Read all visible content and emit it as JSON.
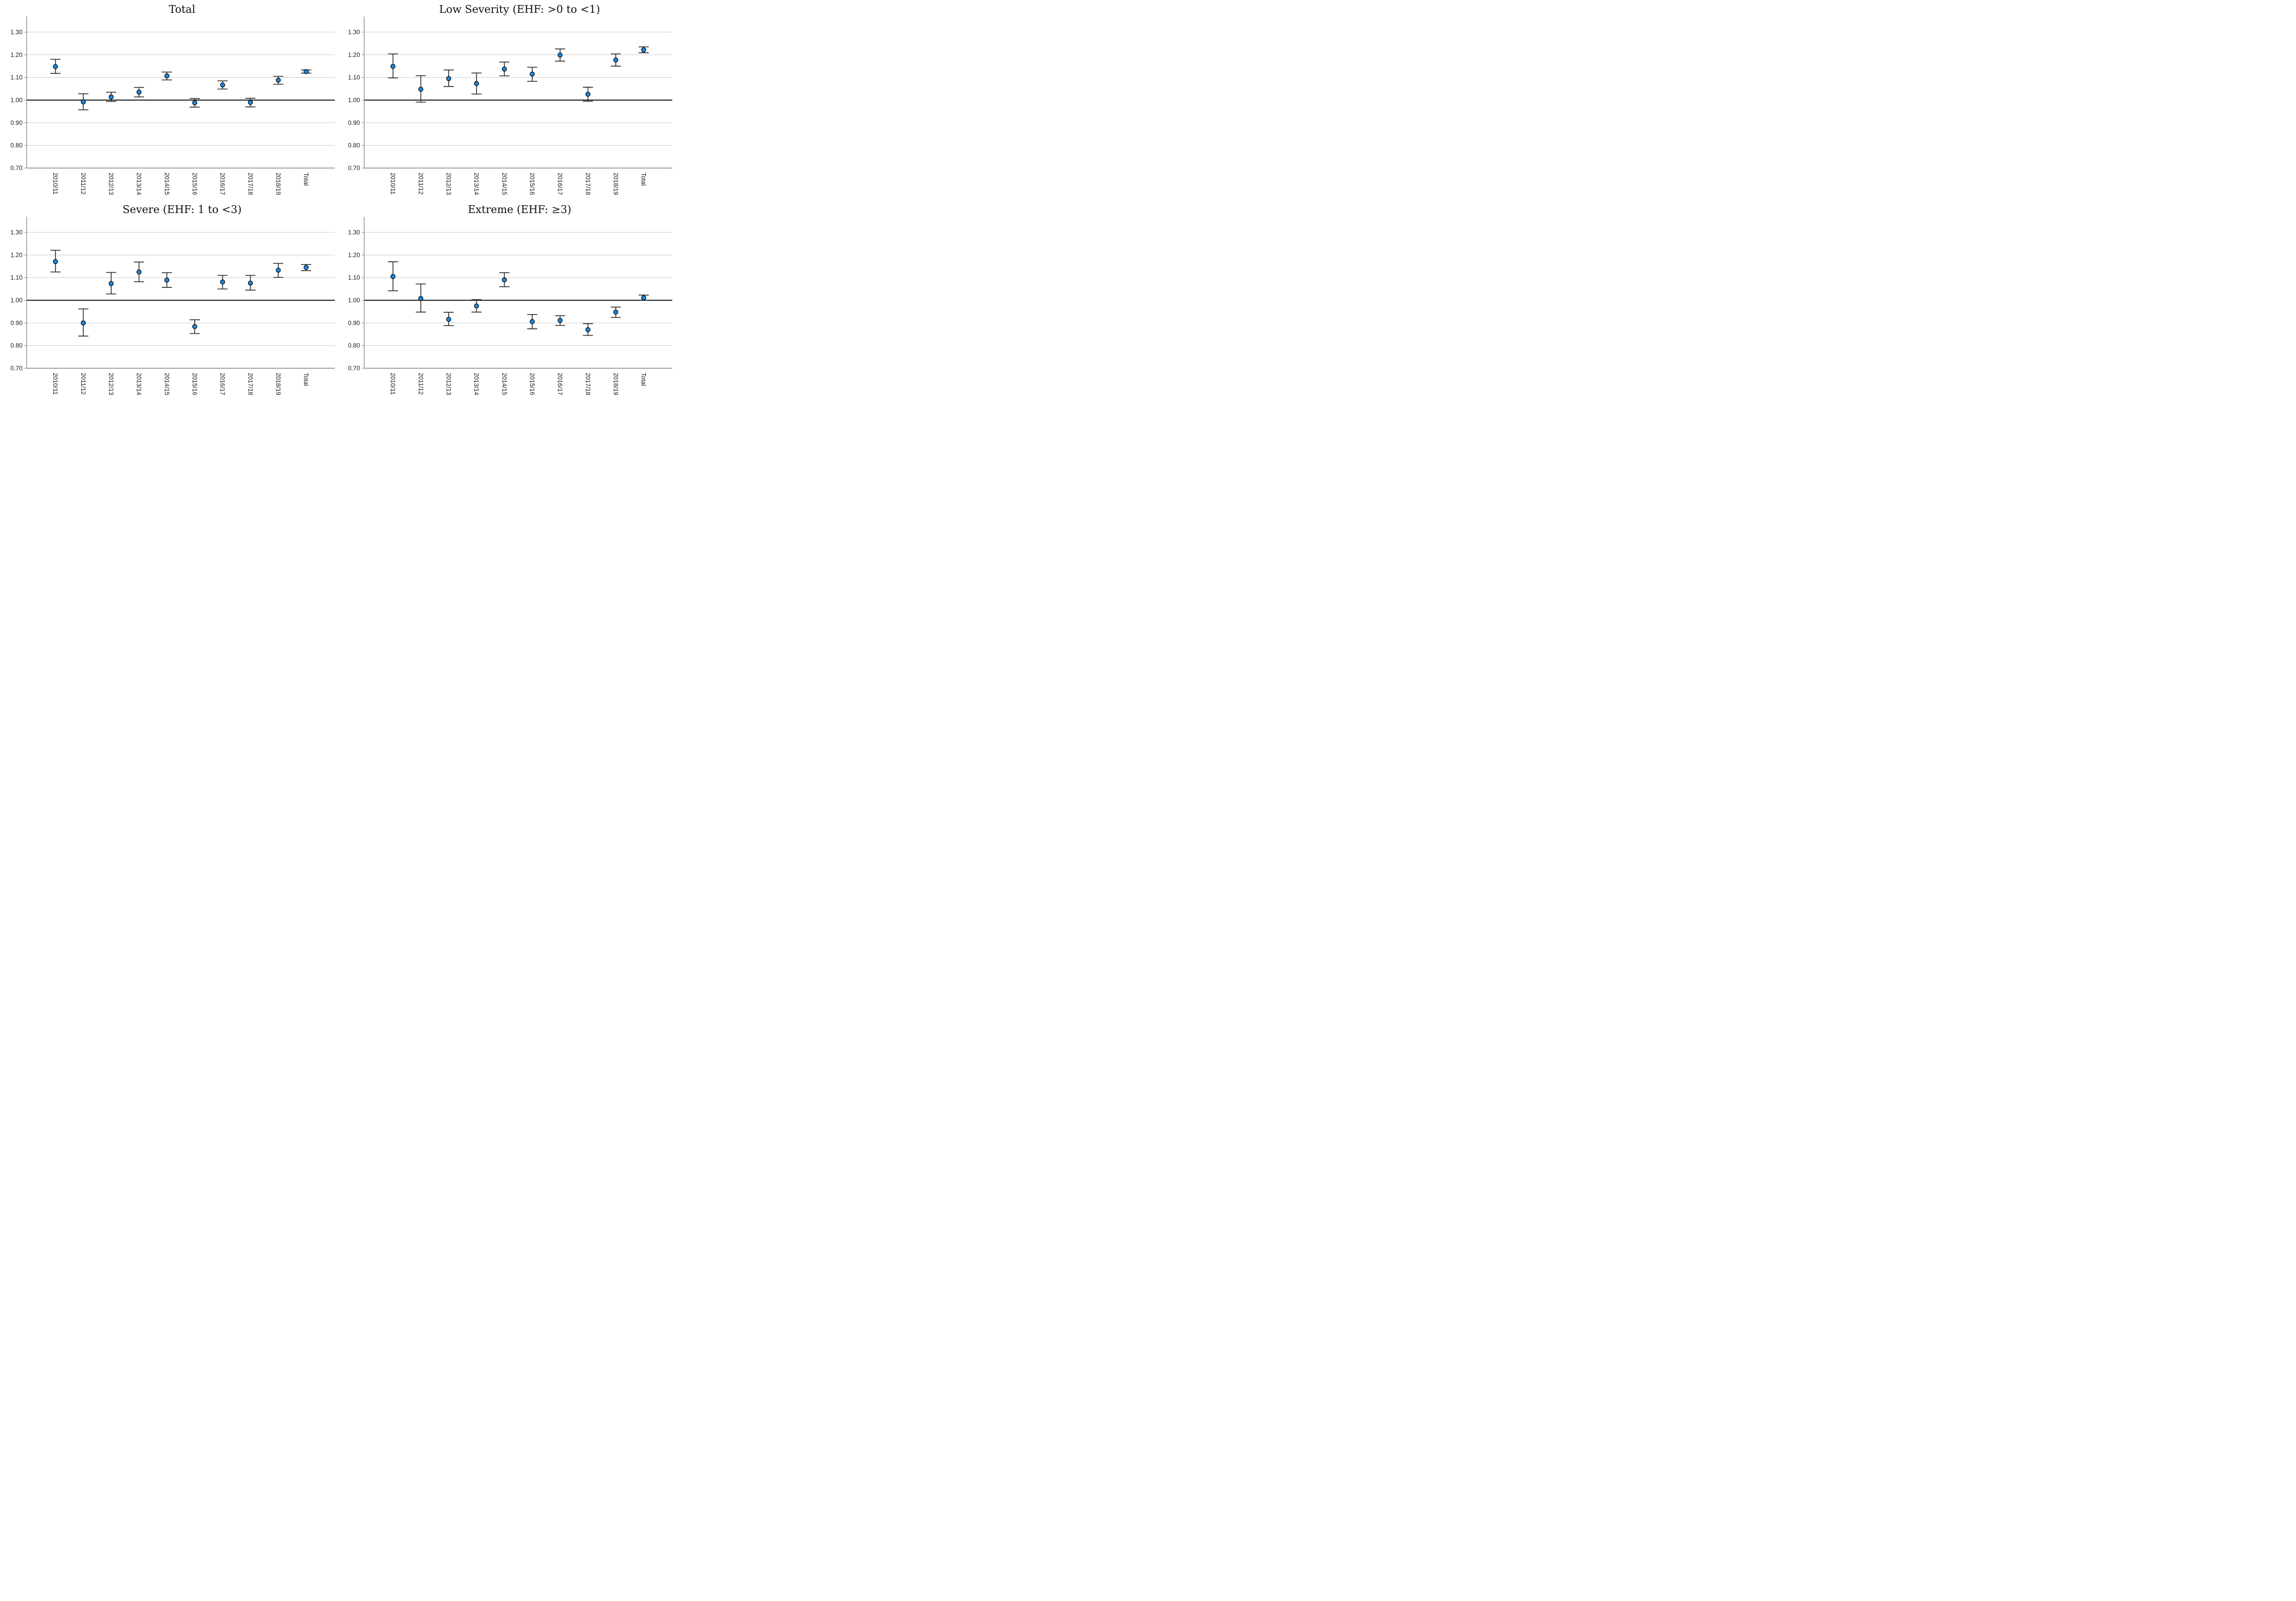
{
  "figure": {
    "kind": "2x2 panel of point-estimate / error-bar charts",
    "background": "#ffffff"
  },
  "axis": {
    "y_min": 0.7,
    "y_max": 1.365,
    "reference_line": 1.0,
    "y_ticks": [
      {
        "value": 1.3,
        "label": "1.30"
      },
      {
        "value": 1.2,
        "label": "1.20"
      },
      {
        "value": 1.1,
        "label": "1.10"
      },
      {
        "value": 1.0,
        "label": "1.00"
      },
      {
        "value": 0.9,
        "label": "0.90"
      },
      {
        "value": 0.8,
        "label": "0.80"
      },
      {
        "value": 0.7,
        "label": "0.70"
      }
    ],
    "x_label_rotation_deg": 90
  },
  "colors": {
    "marker_fill": "#1689e8",
    "marker_stroke": "#000000",
    "errorbar": "#2e2e2e",
    "gridline": "#c9c9c9",
    "axis": "#8c8c8c",
    "reference_line": "#1c1c1c",
    "text": "#1a1a1a",
    "title_text": "#111111"
  },
  "chart_data": [
    {
      "type": "scatter",
      "error_bars": true,
      "title": "Total",
      "categories": [
        "2010/11",
        "2011/12",
        "2012/13",
        "2013/14",
        "2014/15",
        "2015/16",
        "2016/17",
        "2017/18",
        "2018/19",
        "Total"
      ],
      "series": [
        {
          "name": "point estimate",
          "values": [
            1.148,
            0.992,
            1.014,
            1.035,
            1.107,
            0.988,
            1.067,
            0.99,
            1.088,
            1.126
          ],
          "ci_low": [
            1.118,
            0.957,
            0.994,
            1.014,
            1.089,
            0.969,
            1.049,
            0.97,
            1.07,
            1.119
          ],
          "ci_high": [
            1.18,
            1.028,
            1.035,
            1.056,
            1.124,
            1.007,
            1.085,
            1.008,
            1.105,
            1.133
          ]
        }
      ],
      "ylim": [
        0.7,
        1.365
      ],
      "yticks": [
        0.7,
        0.8,
        0.9,
        1.0,
        1.1,
        1.2,
        1.3
      ],
      "reference_line": 1.0,
      "grid": true,
      "legend": false
    },
    {
      "type": "scatter",
      "error_bars": true,
      "title": "Low Severity (EHF: >0 to <1)",
      "categories": [
        "2010/11",
        "2011/12",
        "2012/13",
        "2013/14",
        "2014/15",
        "2015/16",
        "2016/17",
        "2017/18",
        "2018/19",
        "Total"
      ],
      "series": [
        {
          "name": "point estimate",
          "values": [
            1.149,
            1.048,
            1.095,
            1.073,
            1.137,
            1.115,
            1.199,
            1.026,
            1.177,
            1.222
          ],
          "ci_low": [
            1.098,
            0.991,
            1.06,
            1.027,
            1.107,
            1.083,
            1.172,
            0.995,
            1.15,
            1.209
          ],
          "ci_high": [
            1.204,
            1.108,
            1.133,
            1.12,
            1.168,
            1.145,
            1.226,
            1.057,
            1.204,
            1.235
          ]
        }
      ],
      "ylim": [
        0.7,
        1.365
      ],
      "yticks": [
        0.7,
        0.8,
        0.9,
        1.0,
        1.1,
        1.2,
        1.3
      ],
      "reference_line": 1.0,
      "grid": true,
      "legend": false
    },
    {
      "type": "scatter",
      "error_bars": true,
      "title": "Severe (EHF: 1 to <3)",
      "categories": [
        "2010/11",
        "2011/12",
        "2012/13",
        "2013/14",
        "2014/15",
        "2015/16",
        "2016/17",
        "2017/18",
        "2018/19",
        "Total"
      ],
      "series": [
        {
          "name": "point estimate",
          "values": [
            1.171,
            0.9,
            1.074,
            1.125,
            1.089,
            0.884,
            1.081,
            1.076,
            1.133,
            1.145
          ],
          "ci_low": [
            1.125,
            0.842,
            1.028,
            1.082,
            1.057,
            0.853,
            1.05,
            1.045,
            1.101,
            1.131
          ],
          "ci_high": [
            1.221,
            0.962,
            1.123,
            1.169,
            1.122,
            0.914,
            1.11,
            1.11,
            1.163,
            1.158
          ]
        }
      ],
      "ylim": [
        0.7,
        1.365
      ],
      "yticks": [
        0.7,
        0.8,
        0.9,
        1.0,
        1.1,
        1.2,
        1.3
      ],
      "reference_line": 1.0,
      "grid": true,
      "legend": false
    },
    {
      "type": "scatter",
      "error_bars": true,
      "title": "Extreme (EHF: ≥3)",
      "categories": [
        "2010/11",
        "2011/12",
        "2012/13",
        "2013/14",
        "2014/15",
        "2015/16",
        "2016/17",
        "2017/18",
        "2018/19",
        "Total"
      ],
      "series": [
        {
          "name": "point estimate",
          "values": [
            1.105,
            1.008,
            0.916,
            0.975,
            1.09,
            0.906,
            0.911,
            0.87,
            0.948,
            1.011
          ],
          "ci_low": [
            1.042,
            0.948,
            0.888,
            0.948,
            1.06,
            0.874,
            0.889,
            0.845,
            0.924,
            1.0
          ],
          "ci_high": [
            1.17,
            1.072,
            0.947,
            1.003,
            1.122,
            0.937,
            0.932,
            0.897,
            0.97,
            1.023
          ]
        }
      ],
      "ylim": [
        0.7,
        1.365
      ],
      "yticks": [
        0.7,
        0.8,
        0.9,
        1.0,
        1.1,
        1.2,
        1.3
      ],
      "reference_line": 1.0,
      "grid": true,
      "legend": false
    }
  ]
}
